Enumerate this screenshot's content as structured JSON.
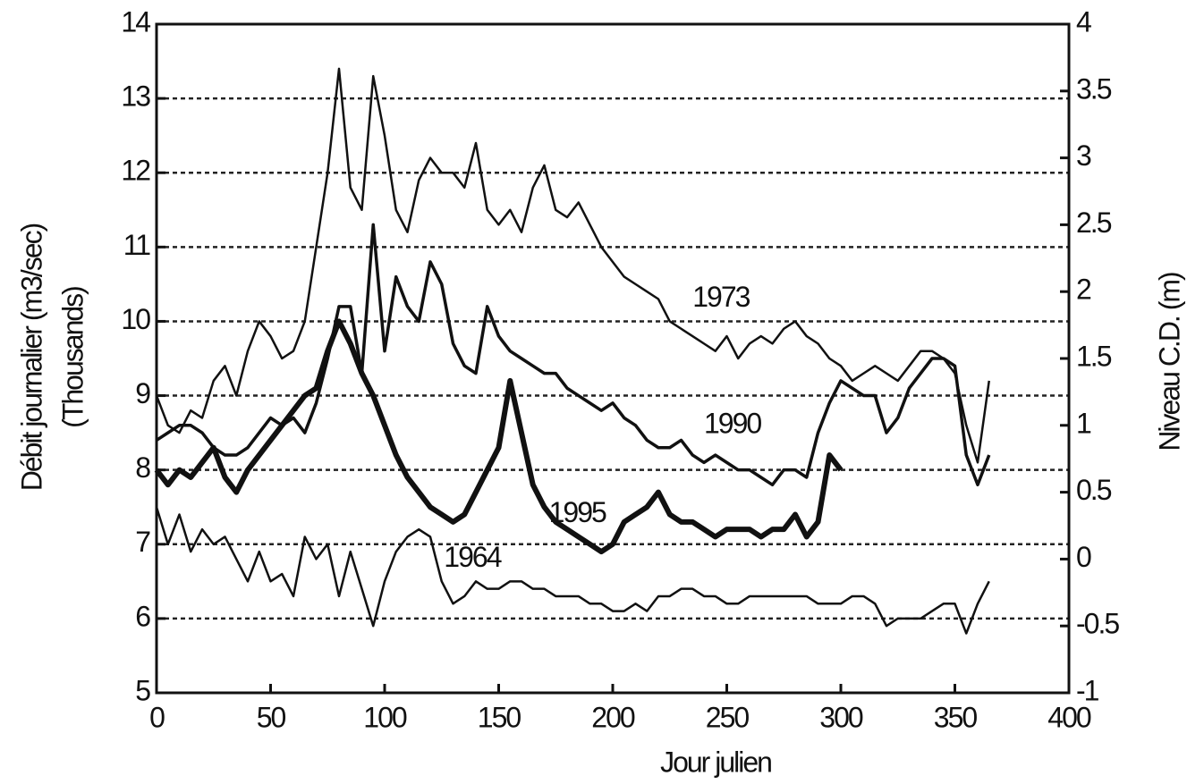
{
  "chart_data": {
    "type": "line",
    "ylabel": [
      "Débit journalier (m3/sec)",
      "(Thousands)"
    ],
    "y2label": "Niveau C.D. (m)",
    "xlabel": "Jour julien",
    "xlim": [
      0,
      400
    ],
    "xticks": [
      0,
      50,
      100,
      150,
      200,
      250,
      300,
      350,
      400
    ],
    "ylim": [
      5,
      14
    ],
    "yticks": [
      5,
      6,
      7,
      8,
      9,
      10,
      11,
      12,
      13,
      14
    ],
    "y2lim": [
      -1,
      4
    ],
    "y2ticks": [
      -1,
      -0.5,
      0,
      0.5,
      1,
      1.5,
      2,
      2.5,
      3,
      3.5,
      4
    ],
    "grid": true,
    "x": [
      0,
      5,
      10,
      15,
      20,
      25,
      30,
      35,
      40,
      45,
      50,
      55,
      60,
      65,
      70,
      75,
      80,
      85,
      90,
      95,
      100,
      105,
      110,
      115,
      120,
      125,
      130,
      135,
      140,
      145,
      150,
      155,
      160,
      165,
      170,
      175,
      180,
      185,
      190,
      195,
      200,
      205,
      210,
      215,
      220,
      225,
      230,
      235,
      240,
      245,
      250,
      255,
      260,
      265,
      270,
      275,
      280,
      285,
      290,
      295,
      300,
      305,
      310,
      315,
      320,
      325,
      330,
      335,
      340,
      345,
      350,
      355,
      360,
      365
    ],
    "series": [
      {
        "name": "1973",
        "color": "#111111",
        "line_width": 2.5,
        "values": [
          9.0,
          8.6,
          8.5,
          8.8,
          8.7,
          9.2,
          9.4,
          9.0,
          9.6,
          10.0,
          9.8,
          9.5,
          9.6,
          10.0,
          11.0,
          12.0,
          13.4,
          11.8,
          11.5,
          13.3,
          12.5,
          11.5,
          11.2,
          11.9,
          12.2,
          12.0,
          12.0,
          11.8,
          12.4,
          11.5,
          11.3,
          11.5,
          11.2,
          11.8,
          12.1,
          11.5,
          11.4,
          11.6,
          11.3,
          11.0,
          10.8,
          10.6,
          10.5,
          10.4,
          10.3,
          10.0,
          9.9,
          9.8,
          9.7,
          9.6,
          9.8,
          9.5,
          9.7,
          9.8,
          9.7,
          9.9,
          10.0,
          9.8,
          9.7,
          9.5,
          9.4,
          9.2,
          9.3,
          9.4,
          9.3,
          9.2,
          9.4,
          9.6,
          9.6,
          9.5,
          9.3,
          8.6,
          8.1,
          9.2
        ]
      },
      {
        "name": "1990",
        "color": "#111111",
        "line_width": 3.5,
        "values": [
          8.4,
          8.5,
          8.6,
          8.6,
          8.5,
          8.3,
          8.2,
          8.2,
          8.3,
          8.5,
          8.7,
          8.6,
          8.7,
          8.5,
          8.9,
          9.5,
          10.2,
          10.2,
          9.3,
          11.3,
          9.6,
          10.6,
          10.2,
          10.0,
          10.8,
          10.5,
          9.7,
          9.4,
          9.3,
          10.2,
          9.8,
          9.6,
          9.5,
          9.4,
          9.3,
          9.3,
          9.1,
          9.0,
          8.9,
          8.8,
          8.9,
          8.7,
          8.6,
          8.4,
          8.3,
          8.3,
          8.4,
          8.2,
          8.1,
          8.2,
          8.1,
          8.0,
          8.0,
          7.9,
          7.8,
          8.0,
          8.0,
          7.9,
          8.5,
          8.9,
          9.2,
          9.1,
          9.0,
          9.0,
          8.5,
          8.7,
          9.1,
          9.3,
          9.5,
          9.5,
          9.4,
          8.2,
          7.8,
          8.2
        ]
      },
      {
        "name": "1995",
        "color": "#111111",
        "line_width": 6,
        "values": [
          8.0,
          7.8,
          8.0,
          7.9,
          8.1,
          8.3,
          7.9,
          7.7,
          8.0,
          8.2,
          8.4,
          8.6,
          8.8,
          9.0,
          9.1,
          9.6,
          10.0,
          9.7,
          9.3,
          9.0,
          8.6,
          8.2,
          7.9,
          7.7,
          7.5,
          7.4,
          7.3,
          7.4,
          7.7,
          8.0,
          8.3,
          9.2,
          8.5,
          7.8,
          7.5,
          7.3,
          7.2,
          7.1,
          7.0,
          6.9,
          7.0,
          7.3,
          7.4,
          7.5,
          7.7,
          7.4,
          7.3,
          7.3,
          7.2,
          7.1,
          7.2,
          7.2,
          7.2,
          7.1,
          7.2,
          7.2,
          7.4,
          7.1,
          7.3,
          8.2,
          8.0,
          null,
          null,
          null,
          null,
          null,
          null,
          null,
          null,
          null,
          null,
          null,
          null,
          null
        ]
      },
      {
        "name": "1964",
        "color": "#111111",
        "line_width": 2.5,
        "values": [
          7.5,
          7.0,
          7.4,
          6.9,
          7.2,
          7.0,
          7.1,
          6.8,
          6.5,
          6.9,
          6.5,
          6.6,
          6.3,
          7.1,
          6.8,
          7.0,
          6.3,
          6.9,
          6.4,
          5.9,
          6.5,
          6.9,
          7.1,
          7.2,
          7.1,
          6.5,
          6.2,
          6.3,
          6.5,
          6.4,
          6.4,
          6.5,
          6.5,
          6.4,
          6.4,
          6.3,
          6.3,
          6.3,
          6.2,
          6.2,
          6.1,
          6.1,
          6.2,
          6.1,
          6.3,
          6.3,
          6.4,
          6.4,
          6.3,
          6.3,
          6.2,
          6.2,
          6.3,
          6.3,
          6.3,
          6.3,
          6.3,
          6.3,
          6.2,
          6.2,
          6.2,
          6.3,
          6.3,
          6.2,
          5.9,
          6.0,
          6.0,
          6.0,
          6.1,
          6.2,
          6.2,
          5.8,
          6.2,
          6.5
        ]
      }
    ],
    "annotations": [
      {
        "text": "1973",
        "x": 235,
        "y": 10.3
      },
      {
        "text": "1990",
        "x": 240,
        "y": 8.6
      },
      {
        "text": "1995",
        "x": 172,
        "y": 7.4
      },
      {
        "text": "1964",
        "x": 126,
        "y": 6.8
      }
    ]
  }
}
